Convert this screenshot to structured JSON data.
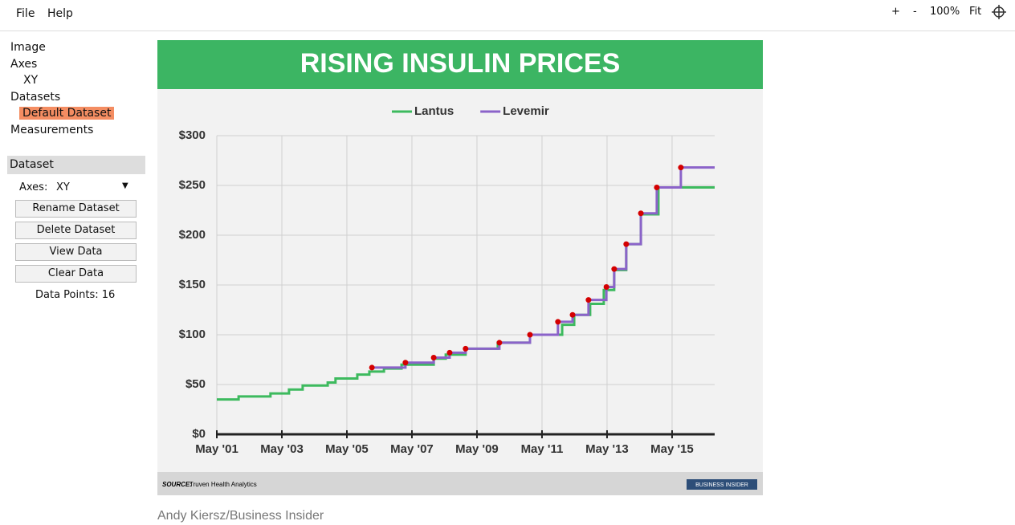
{
  "menu": [
    "File",
    "Help"
  ],
  "toolbar": [
    "+",
    "-",
    "100%",
    "Fit"
  ],
  "tree": {
    "image": "Image",
    "axes": "Axes",
    "axes_item": "XY",
    "datasets": "Datasets",
    "dataset_item": "Default Dataset",
    "measurements": "Measurements"
  },
  "panel": {
    "title": "Dataset",
    "axes_label": "Axes:",
    "axes_value": "XY",
    "buttons": [
      "Rename Dataset",
      "Delete Dataset",
      "View Data",
      "Clear Data"
    ],
    "data_points": "Data Points: 16"
  },
  "chart_data": {
    "type": "step",
    "title": "RISING INSULIN PRICES",
    "series": [
      {
        "name": "Lantus",
        "color": "#3dba5e",
        "x": [
          2001.37,
          2002.04,
          2003.02,
          2003.59,
          2004.01,
          2004.78,
          2005.02,
          2005.69,
          2006.06,
          2006.51,
          2007.05,
          2008.04,
          2008.41,
          2009.02,
          2010.01,
          2011.0,
          2011.99,
          2012.36,
          2012.85,
          2013.27,
          2013.59,
          2013.96,
          2014.41,
          2014.95,
          2016.68
        ],
        "values": [
          35,
          38,
          41,
          45,
          49,
          52,
          56,
          60,
          63,
          66,
          70,
          76,
          80,
          86,
          92,
          100,
          110,
          120,
          131,
          145,
          165,
          191,
          221,
          248,
          248
        ]
      },
      {
        "name": "Levemir",
        "color": "#8b63c9",
        "x": [
          2006.14,
          2007.17,
          2008.04,
          2008.53,
          2009.02,
          2010.06,
          2011.0,
          2011.86,
          2012.31,
          2012.8,
          2013.35,
          2013.59,
          2013.96,
          2014.41,
          2014.9,
          2015.64,
          2016.68
        ],
        "values": [
          67,
          72,
          77,
          82,
          86,
          92,
          100,
          113,
          120,
          135,
          148,
          166,
          191,
          222,
          248,
          268,
          268
        ]
      }
    ],
    "xlim": [
      2001.37,
      2016.68
    ],
    "xticks": [
      {
        "value": 2001.37,
        "label": "May '01"
      },
      {
        "value": 2003.37,
        "label": "May '03"
      },
      {
        "value": 2005.37,
        "label": "May '05"
      },
      {
        "value": 2007.37,
        "label": "May '07"
      },
      {
        "value": 2009.37,
        "label": "May '09"
      },
      {
        "value": 2011.37,
        "label": "May '11"
      },
      {
        "value": 2013.37,
        "label": "May '13"
      },
      {
        "value": 2015.37,
        "label": "May '15"
      }
    ],
    "ylim": [
      0,
      300
    ],
    "yticks": [
      {
        "value": 0,
        "label": "$0"
      },
      {
        "value": 50,
        "label": "$50"
      },
      {
        "value": 100,
        "label": "$100"
      },
      {
        "value": 150,
        "label": "$150"
      },
      {
        "value": 200,
        "label": "$200"
      },
      {
        "value": 250,
        "label": "$250"
      },
      {
        "value": 300,
        "label": "$300"
      }
    ],
    "grid": true,
    "source_label": "SOURCE:",
    "source": "Truven Health Analytics",
    "logo": "BUSINESS INSIDER"
  },
  "caption": "Andy Kiersz/Business Insider"
}
